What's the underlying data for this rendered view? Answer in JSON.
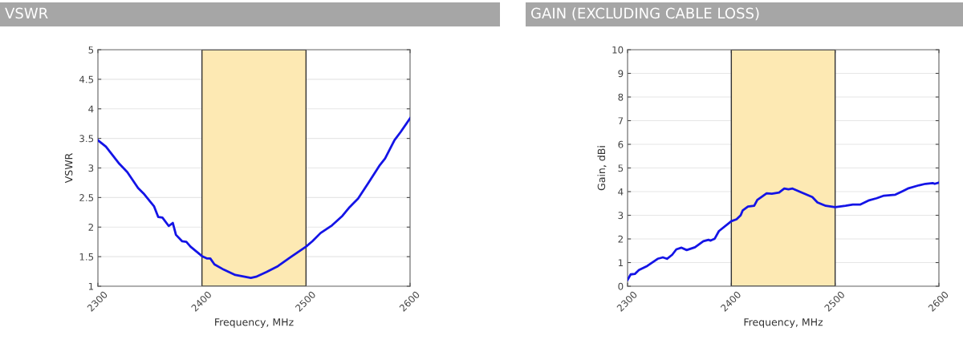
{
  "chart_data": [
    {
      "type": "line",
      "title": "VSWR",
      "xlabel": "Frequency, MHz",
      "ylabel": "VSWR",
      "xlim": [
        2300,
        2600
      ],
      "xticks": [
        2300,
        2400,
        2500,
        2600
      ],
      "ylim": [
        1,
        5
      ],
      "yticks": [
        1,
        1.5,
        2,
        2.5,
        3,
        3.5,
        4,
        4.5,
        5
      ],
      "grid": true,
      "legend": false,
      "bands": [
        {
          "axis": "x",
          "from": 2400,
          "to": 2500,
          "color": "#fde9b3"
        }
      ],
      "series": [
        {
          "color": "#1414e6",
          "x": [
            2300,
            2307.7,
            2320.6,
            2328.3,
            2338.6,
            2343.8,
            2354,
            2358,
            2362,
            2368,
            2372,
            2375,
            2381,
            2385,
            2389,
            2400,
            2404.6,
            2408,
            2412,
            2421,
            2432,
            2447,
            2452,
            2462,
            2473,
            2485,
            2500,
            2506,
            2514,
            2525,
            2535,
            2542,
            2550,
            2560,
            2571,
            2576,
            2585,
            2591,
            2600
          ],
          "values": [
            3.47,
            3.36,
            3.07,
            2.93,
            2.66,
            2.57,
            2.35,
            2.17,
            2.16,
            2.02,
            2.07,
            1.87,
            1.76,
            1.75,
            1.67,
            1.51,
            1.47,
            1.47,
            1.37,
            1.28,
            1.19,
            1.14,
            1.16,
            1.24,
            1.34,
            1.49,
            1.67,
            1.76,
            1.9,
            2.03,
            2.19,
            2.34,
            2.48,
            2.75,
            3.05,
            3.16,
            3.47,
            3.61,
            3.84
          ]
        }
      ]
    },
    {
      "type": "line",
      "title": "GAIN (EXCLUDING CABLE LOSS)",
      "xlabel": "Frequency, MHz",
      "ylabel": "Gain, dBi",
      "xlim": [
        2300,
        2600
      ],
      "xticks": [
        2300,
        2400,
        2500,
        2600
      ],
      "ylim": [
        0,
        10
      ],
      "yticks": [
        0,
        1,
        2,
        3,
        4,
        5,
        6,
        7,
        8,
        9,
        10
      ],
      "grid": true,
      "legend": false,
      "bands": [
        {
          "axis": "x",
          "from": 2400,
          "to": 2500,
          "color": "#fde9b3"
        }
      ],
      "series": [
        {
          "color": "#1414e6",
          "x": [
            2300,
            2303,
            2307,
            2311,
            2319,
            2329,
            2334,
            2338,
            2343,
            2347,
            2352,
            2357,
            2365,
            2373,
            2378,
            2380,
            2384,
            2388,
            2400,
            2405,
            2409,
            2411,
            2416,
            2422,
            2425,
            2434,
            2439,
            2446,
            2451,
            2455,
            2459,
            2468,
            2478,
            2483,
            2491,
            2500,
            2510,
            2517,
            2524,
            2532,
            2540,
            2547,
            2558,
            2565,
            2570,
            2581,
            2587,
            2594,
            2596,
            2600
          ],
          "values": [
            0.27,
            0.5,
            0.52,
            0.69,
            0.86,
            1.16,
            1.22,
            1.16,
            1.33,
            1.56,
            1.63,
            1.53,
            1.65,
            1.9,
            1.96,
            1.93,
            2.01,
            2.33,
            2.75,
            2.83,
            3.0,
            3.21,
            3.37,
            3.4,
            3.65,
            3.93,
            3.91,
            3.96,
            4.13,
            4.1,
            4.13,
            3.96,
            3.77,
            3.54,
            3.4,
            3.34,
            3.4,
            3.45,
            3.45,
            3.62,
            3.72,
            3.83,
            3.87,
            4.02,
            4.13,
            4.27,
            4.33,
            4.36,
            4.33,
            4.38
          ]
        }
      ]
    }
  ]
}
